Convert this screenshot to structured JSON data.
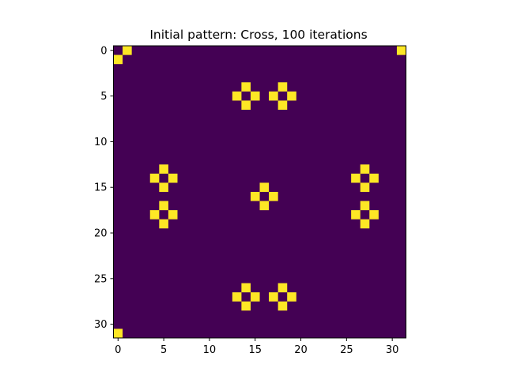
{
  "chart_data": {
    "type": "heatmap",
    "title": "Initial pattern: Cross, 100 iterations",
    "xlabel": "",
    "ylabel": "",
    "grid_size": 32,
    "xlim": [
      -0.5,
      31.5
    ],
    "ylim": [
      31.5,
      -0.5
    ],
    "x_ticks": [
      0,
      5,
      10,
      15,
      20,
      25,
      30
    ],
    "y_ticks": [
      0,
      5,
      10,
      15,
      20,
      25,
      30
    ],
    "grid": false,
    "colormap": "viridis",
    "background_value": 0,
    "colors": {
      "off": "#440154",
      "on": "#fde725"
    },
    "on_cells": [
      [
        0,
        1
      ],
      [
        0,
        31
      ],
      [
        1,
        0
      ],
      [
        4,
        14
      ],
      [
        4,
        18
      ],
      [
        5,
        13
      ],
      [
        5,
        15
      ],
      [
        5,
        17
      ],
      [
        5,
        19
      ],
      [
        6,
        14
      ],
      [
        6,
        18
      ],
      [
        13,
        5
      ],
      [
        13,
        27
      ],
      [
        14,
        4
      ],
      [
        14,
        6
      ],
      [
        14,
        26
      ],
      [
        14,
        28
      ],
      [
        15,
        5
      ],
      [
        15,
        27
      ],
      [
        15,
        16
      ],
      [
        16,
        15
      ],
      [
        16,
        17
      ],
      [
        17,
        16
      ],
      [
        17,
        5
      ],
      [
        17,
        27
      ],
      [
        18,
        4
      ],
      [
        18,
        6
      ],
      [
        18,
        26
      ],
      [
        18,
        28
      ],
      [
        19,
        5
      ],
      [
        19,
        27
      ],
      [
        26,
        14
      ],
      [
        26,
        18
      ],
      [
        27,
        13
      ],
      [
        27,
        15
      ],
      [
        27,
        17
      ],
      [
        27,
        19
      ],
      [
        28,
        14
      ],
      [
        28,
        18
      ],
      [
        31,
        0
      ]
    ]
  }
}
